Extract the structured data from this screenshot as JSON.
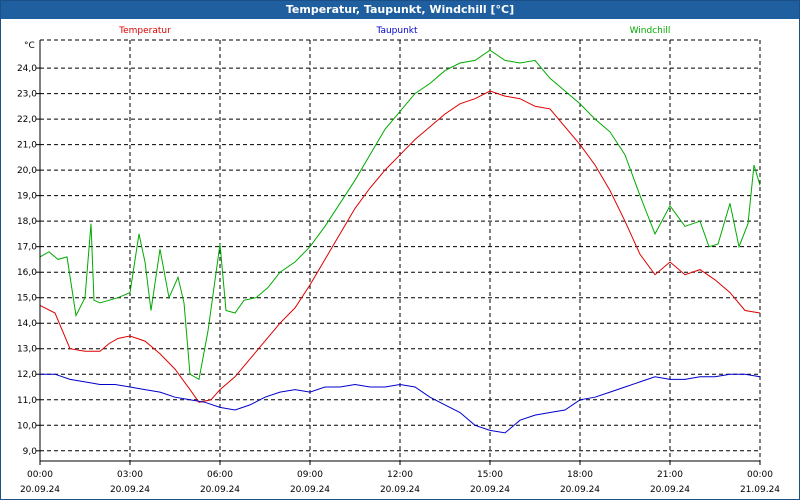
{
  "title": "Temperatur, Taupunkt, Windchill [°C]",
  "chart_data": {
    "type": "line",
    "title": "Temperatur, Taupunkt, Windchill [°C]",
    "ylabel": "°C",
    "ylim": [
      8.6,
      25.1
    ],
    "yticks": [
      "24,0",
      "23,0",
      "22,0",
      "21,0",
      "20,0",
      "19,0",
      "18,0",
      "17,0",
      "16,0",
      "15,0",
      "14,0",
      "13,0",
      "12,0",
      "11,0",
      "10,0",
      "9,0"
    ],
    "xlim_hours": [
      0,
      24
    ],
    "xticks": [
      {
        "time": "00:00",
        "date": "20.09.24"
      },
      {
        "time": "03:00",
        "date": "20.09.24"
      },
      {
        "time": "06:00",
        "date": "20.09.24"
      },
      {
        "time": "09:00",
        "date": "20.09.24"
      },
      {
        "time": "12:00",
        "date": "20.09.24"
      },
      {
        "time": "15:00",
        "date": "20.09.24"
      },
      {
        "time": "18:00",
        "date": "20.09.24"
      },
      {
        "time": "21:00",
        "date": "20.09.24"
      },
      {
        "time": "00:00",
        "date": "21.09.24"
      }
    ],
    "grid": true,
    "legend_position": "top",
    "series": [
      {
        "name": "Temperatur",
        "color": "#dd0000",
        "x": [
          0,
          0.5,
          1,
          1.5,
          2,
          2.3,
          2.6,
          3,
          3.5,
          4,
          4.5,
          5,
          5.3,
          5.7,
          6,
          6.5,
          7,
          7.5,
          8,
          8.5,
          9,
          9.5,
          10,
          10.5,
          11,
          11.5,
          12,
          12.5,
          13,
          13.5,
          14,
          14.5,
          15,
          15.5,
          16,
          16.5,
          17,
          17.5,
          18,
          18.5,
          19,
          19.5,
          20,
          20.5,
          21,
          21.5,
          22,
          22.5,
          23,
          23.5,
          24
        ],
        "y": [
          14.7,
          14.4,
          13.0,
          12.9,
          12.9,
          13.2,
          13.4,
          13.5,
          13.3,
          12.8,
          12.2,
          11.4,
          10.9,
          11.0,
          11.4,
          11.9,
          12.6,
          13.3,
          14.0,
          14.6,
          15.5,
          16.5,
          17.5,
          18.5,
          19.3,
          20.0,
          20.6,
          21.2,
          21.7,
          22.2,
          22.6,
          22.8,
          23.1,
          22.9,
          22.8,
          22.5,
          22.4,
          21.7,
          21.0,
          20.2,
          19.2,
          18.0,
          16.7,
          15.9,
          16.4,
          15.9,
          16.1,
          15.7,
          15.2,
          14.5,
          14.4
        ]
      },
      {
        "name": "Taupunkt",
        "color": "#0000cc",
        "x": [
          0,
          0.5,
          1,
          1.5,
          2,
          2.5,
          3,
          3.5,
          4,
          4.5,
          5,
          5.5,
          6,
          6.5,
          7,
          7.5,
          8,
          8.5,
          9,
          9.5,
          10,
          10.5,
          11,
          11.5,
          12,
          12.5,
          13,
          13.5,
          14,
          14.5,
          15,
          15.5,
          16,
          16.5,
          17,
          17.5,
          18,
          18.5,
          19,
          19.5,
          20,
          20.5,
          21,
          21.5,
          22,
          22.5,
          23,
          23.5,
          24
        ],
        "y": [
          12.0,
          12.0,
          11.8,
          11.7,
          11.6,
          11.6,
          11.5,
          11.4,
          11.3,
          11.1,
          11.0,
          10.9,
          10.7,
          10.6,
          10.8,
          11.1,
          11.3,
          11.4,
          11.3,
          11.5,
          11.5,
          11.6,
          11.5,
          11.5,
          11.6,
          11.5,
          11.1,
          10.8,
          10.5,
          10.0,
          9.8,
          9.7,
          10.2,
          10.4,
          10.5,
          10.6,
          11.0,
          11.1,
          11.3,
          11.5,
          11.7,
          11.9,
          11.8,
          11.8,
          11.9,
          11.9,
          12.0,
          12.0,
          11.9
        ]
      },
      {
        "name": "Windchill",
        "color": "#00aa00",
        "x": [
          0,
          0.3,
          0.6,
          0.9,
          1.2,
          1.5,
          1.7,
          1.8,
          2.0,
          2.3,
          2.6,
          3.0,
          3.3,
          3.5,
          3.7,
          4.0,
          4.3,
          4.6,
          4.8,
          5.0,
          5.3,
          5.6,
          6.0,
          6.2,
          6.5,
          6.8,
          7.2,
          7.6,
          8.0,
          8.5,
          9.0,
          9.5,
          10,
          10.5,
          11,
          11.5,
          12,
          12.5,
          13,
          13.5,
          14,
          14.5,
          15,
          15.5,
          16,
          16.5,
          17,
          17.5,
          18,
          18.5,
          19,
          19.5,
          20,
          20.2,
          20.5,
          21,
          21.5,
          22,
          22.3,
          22.6,
          23,
          23.3,
          23.6,
          23.8,
          24
        ],
        "y": [
          16.6,
          16.8,
          16.5,
          16.6,
          14.3,
          15.0,
          17.9,
          14.9,
          14.8,
          14.9,
          15.0,
          15.2,
          17.5,
          16.4,
          14.5,
          16.9,
          15.0,
          15.8,
          14.8,
          12.0,
          11.8,
          13.7,
          17.1,
          14.5,
          14.4,
          14.9,
          15.0,
          15.4,
          16.0,
          16.4,
          17.0,
          17.8,
          18.7,
          19.6,
          20.6,
          21.6,
          22.3,
          23.0,
          23.4,
          23.9,
          24.2,
          24.3,
          24.7,
          24.3,
          24.2,
          24.3,
          23.6,
          23.1,
          22.6,
          22.0,
          21.5,
          20.6,
          19.0,
          18.4,
          17.5,
          18.6,
          17.8,
          18.0,
          17.0,
          17.1,
          18.7,
          17.0,
          17.9,
          20.2,
          19.4
        ]
      }
    ]
  }
}
